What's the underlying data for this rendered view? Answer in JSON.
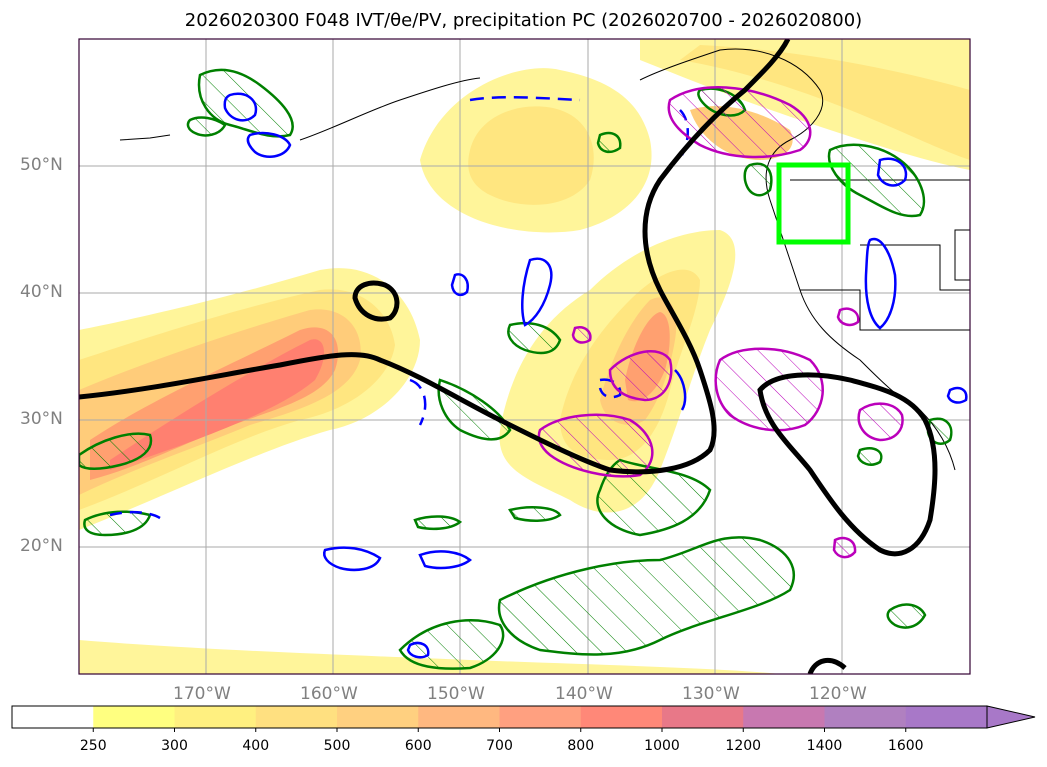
{
  "title": "2026020300 F048 IVT/θe/PV, precipitation PC (2026020700 - 2026020800)",
  "map": {
    "lon_labels": [
      "170°W",
      "160°W",
      "150°W",
      "140°W",
      "130°W",
      "120°W"
    ],
    "lat_labels": [
      "50°N",
      "40°N",
      "30°N",
      "20°N"
    ],
    "extent": {
      "lon": [
        -180,
        -110
      ],
      "lat": [
        10,
        60
      ]
    },
    "highlight_box": {
      "lon": [
        -125,
        -119.5
      ],
      "lat": [
        44,
        50
      ],
      "color": "#00ff00"
    }
  },
  "colorbar": {
    "levels": [
      "250",
      "300",
      "400",
      "500",
      "600",
      "700",
      "800",
      "1000",
      "1200",
      "1400",
      "1600"
    ],
    "colors": [
      "#ffffff",
      "#ffff80",
      "#fff080",
      "#ffe080",
      "#ffd080",
      "#ffb880",
      "#ffa080",
      "#ff8878",
      "#e87888",
      "#c878b0",
      "#b080c0",
      "#a878c8"
    ],
    "extend": "max"
  },
  "layers": {
    "ivt_fill_colors": [
      "#fff59a",
      "#ffe680",
      "#ffcc7a",
      "#ffa070",
      "#ff8070",
      "#f07080"
    ],
    "theta_e_color": "#000000",
    "pv_color_positive": "#0000ff",
    "precip_color": "#008000",
    "pc_color": "#bb00bb"
  }
}
